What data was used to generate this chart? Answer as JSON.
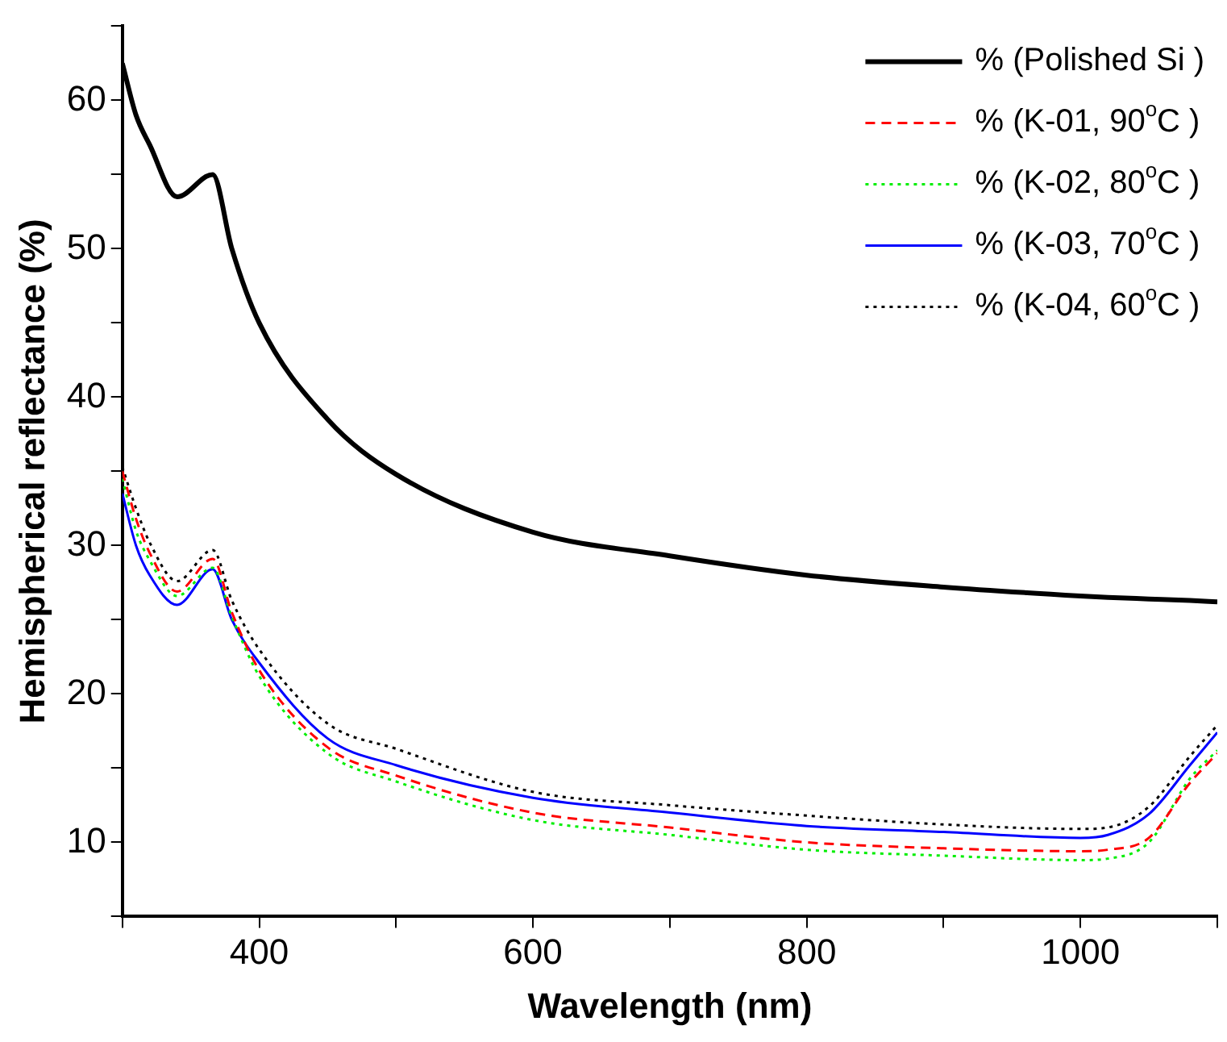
{
  "chart_data": {
    "type": "line",
    "xlabel": "Wavelength (nm)",
    "ylabel": "Hemispherical reflectance (%)",
    "xlim": [
      300,
      1100
    ],
    "xticks": [
      400,
      600,
      800,
      1000
    ],
    "ylim": [
      5,
      65
    ],
    "yticks": [
      10,
      20,
      30,
      40,
      50,
      60
    ],
    "grid": false,
    "legend": "top right",
    "marker": "none",
    "x": [
      300,
      310,
      320,
      340,
      366,
      380,
      400,
      450,
      500,
      600,
      700,
      800,
      900,
      1000,
      1020,
      1050,
      1080,
      1100
    ],
    "series": [
      {
        "name": "% (Polished Si )",
        "color": "#000000",
        "line_style": "solid",
        "values": [
          62.5,
          59,
          57,
          53.5,
          55,
          50,
          45,
          38.5,
          34.8,
          30.9,
          29.3,
          28,
          27.2,
          26.6,
          26.5,
          26.4,
          26.3,
          26.2
        ]
      },
      {
        "name": "% (K-01, 90$^{o}$C )",
        "color": "#ff0000",
        "line_style": "dashed",
        "values": [
          35,
          31.8,
          29.5,
          26.9,
          29.1,
          25.5,
          21.6,
          16.4,
          14.5,
          12,
          11,
          10,
          9.6,
          9.4,
          9.5,
          10.3,
          14,
          16
        ]
      },
      {
        "name": "% (K-02, 80$^{o}$C )",
        "color": "#00ee00",
        "line_style": "dotted",
        "values": [
          34.5,
          31,
          29,
          26.6,
          28.5,
          25.2,
          21.2,
          16,
          14.1,
          11.5,
          10.5,
          9.5,
          9.1,
          8.8,
          8.9,
          10,
          14.3,
          16.2
        ]
      },
      {
        "name": "% (K-03, 70$^{o}$C )",
        "color": "#0000ff",
        "line_style": "solid",
        "values": [
          33.5,
          30,
          28,
          26,
          28.4,
          25,
          22.1,
          17,
          15.2,
          13,
          12,
          11.1,
          10.7,
          10.3,
          10.5,
          11.9,
          15.2,
          17.4
        ]
      },
      {
        "name": "% (K-04, 60$^{o}$C )",
        "color": "#000000",
        "line_style": "dotted",
        "values": [
          35.3,
          32.5,
          30.2,
          27.6,
          29.7,
          26.3,
          23,
          18,
          16.3,
          13.4,
          12.5,
          11.8,
          11.2,
          10.9,
          11,
          12.4,
          15.8,
          17.9
        ]
      }
    ]
  }
}
